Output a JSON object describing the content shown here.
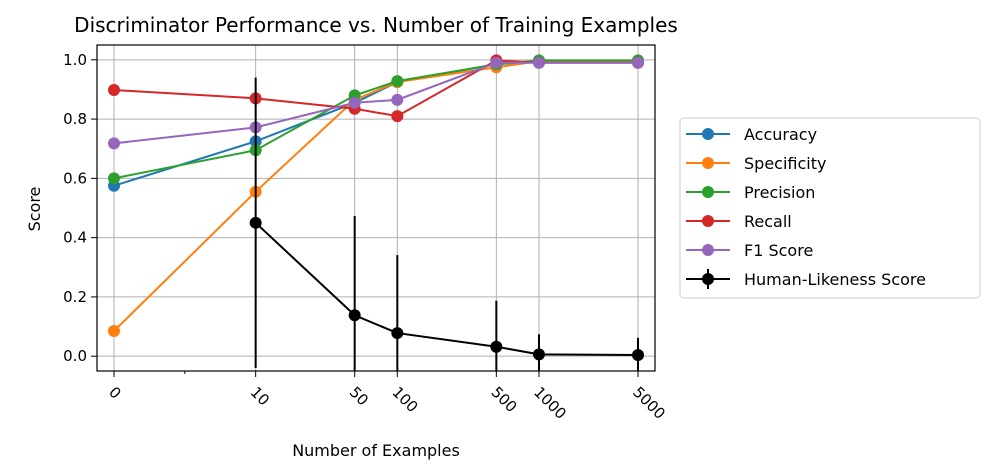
{
  "chart_data": {
    "type": "line",
    "title": "Discriminator Performance vs. Number of Training Examples",
    "xlabel": "Number of Examples",
    "ylabel": "Score",
    "x_scale": "symlog",
    "x": [
      0,
      10,
      50,
      100,
      500,
      1000,
      5000
    ],
    "x_tick_labels": [
      "0",
      "10",
      "50",
      "100",
      "500",
      "1000",
      "5000"
    ],
    "ylim": [
      -0.05,
      1.05
    ],
    "y_ticks": [
      0.0,
      0.2,
      0.4,
      0.6,
      0.8,
      1.0
    ],
    "y_tick_labels": [
      "0.0",
      "0.2",
      "0.4",
      "0.6",
      "0.8",
      "1.0"
    ],
    "grid": true,
    "legend_position": "outside-right",
    "series": [
      {
        "name": "Accuracy",
        "color": "#1f77b4",
        "values": [
          0.575,
          0.725,
          0.855,
          0.925,
          0.985,
          0.995,
          0.995
        ]
      },
      {
        "name": "Specificity",
        "color": "#ff7f0e",
        "values": [
          0.085,
          0.555,
          0.865,
          0.925,
          0.975,
          0.995,
          0.995
        ]
      },
      {
        "name": "Precision",
        "color": "#2ca02c",
        "values": [
          0.6,
          0.695,
          0.88,
          0.928,
          0.985,
          0.998,
          0.998
        ]
      },
      {
        "name": "Recall",
        "color": "#d62728",
        "values": [
          0.898,
          0.87,
          0.835,
          0.81,
          0.998,
          0.99,
          0.99
        ]
      },
      {
        "name": "F1 Score",
        "color": "#9467bd",
        "values": [
          0.718,
          0.772,
          0.855,
          0.865,
          0.99,
          0.99,
          0.99
        ]
      }
    ],
    "error_series": {
      "name": "Human-Likeness Score",
      "color": "#000000",
      "x": [
        10,
        50,
        100,
        500,
        1000,
        5000
      ],
      "values": [
        0.45,
        0.138,
        0.078,
        0.032,
        0.006,
        0.004
      ],
      "errors": [
        0.49,
        0.335,
        0.263,
        0.155,
        0.068,
        0.058
      ]
    }
  }
}
